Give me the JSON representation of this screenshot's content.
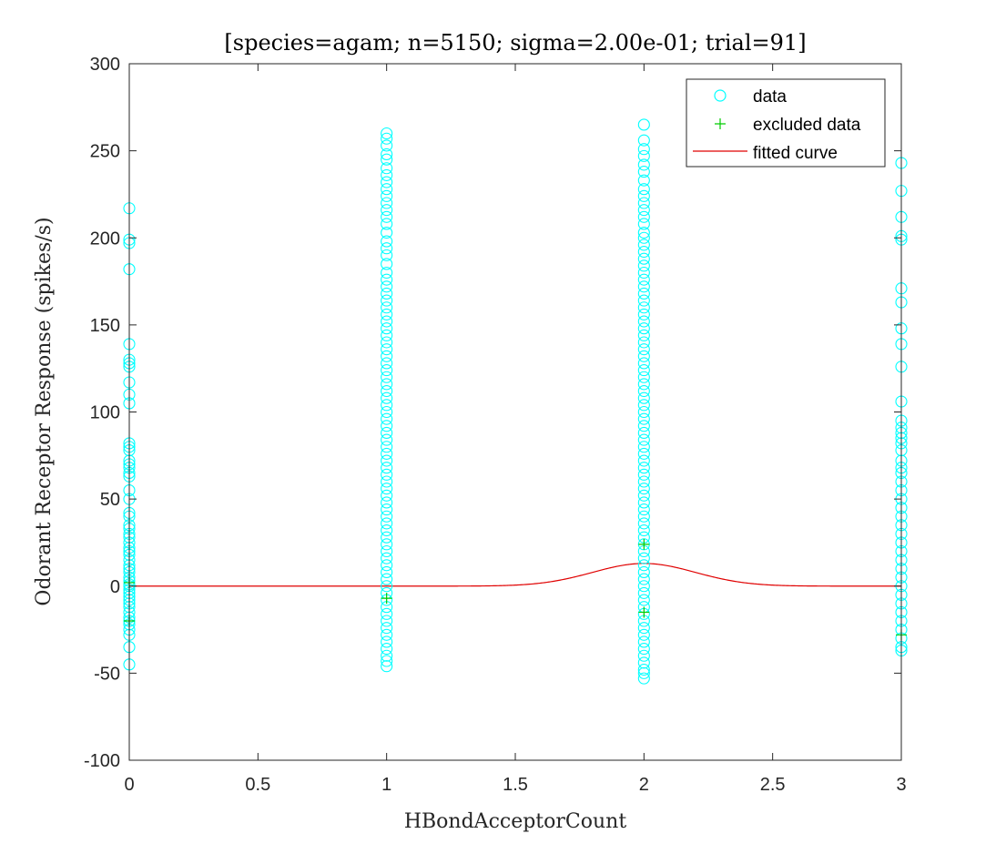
{
  "chart_data": {
    "type": "scatter",
    "title": "[species=agam; n=5150; sigma=2.00e-01; trial=91]",
    "xlabel": "HBondAcceptorCount",
    "ylabel": "Odorant Receptor Response (spikes/s)",
    "xlim": [
      0,
      3
    ],
    "ylim": [
      -100,
      300
    ],
    "xticks": [
      0,
      0.5,
      1,
      1.5,
      2,
      2.5,
      3
    ],
    "xtick_labels": [
      "0",
      "0.5",
      "1",
      "1.5",
      "2",
      "2.5",
      "3"
    ],
    "yticks": [
      -100,
      -50,
      0,
      50,
      100,
      150,
      200,
      250,
      300
    ],
    "ytick_labels": [
      "-100",
      "-50",
      "0",
      "50",
      "100",
      "150",
      "200",
      "250",
      "300"
    ],
    "grid": false,
    "legend_position": "top-right",
    "legend": [
      "data",
      "excluded data",
      "fitted curve"
    ],
    "colors": {
      "data": "#00ffff",
      "excluded": "#00cc00",
      "fit": "#e00000",
      "axes": "#262626"
    },
    "series": [
      {
        "name": "data",
        "marker": "circle",
        "groups": [
          {
            "x": 0,
            "y": [
              217,
              199,
              197,
              182,
              139,
              130,
              128,
              126,
              117,
              110,
              105,
              82,
              80,
              78,
              72,
              70,
              68,
              65,
              63,
              55,
              50,
              42,
              40,
              35,
              33,
              30,
              28,
              25,
              22,
              20,
              18,
              15,
              12,
              10,
              8,
              5,
              3,
              1,
              0,
              -2,
              -4,
              -6,
              -8,
              -10,
              -12,
              -15,
              -18,
              -20,
              -22,
              -25,
              -28,
              -35,
              -45
            ]
          },
          {
            "x": 1,
            "y": [
              260,
              257,
              253,
              248,
              245,
              240,
              236,
              232,
              228,
              224,
              220,
              216,
              212,
              208,
              203,
              198,
              194,
              190,
              185,
              180,
              176,
              172,
              168,
              164,
              160,
              156,
              152,
              148,
              144,
              140,
              136,
              132,
              128,
              124,
              120,
              116,
              112,
              108,
              104,
              100,
              96,
              92,
              88,
              84,
              80,
              76,
              72,
              68,
              64,
              60,
              56,
              52,
              48,
              44,
              40,
              36,
              32,
              28,
              24,
              20,
              16,
              12,
              8,
              4,
              0,
              -4,
              -8,
              -12,
              -16,
              -20,
              -24,
              -28,
              -32,
              -36,
              -40,
              -43,
              -46
            ]
          },
          {
            "x": 2,
            "y": [
              265,
              256,
              251,
              247,
              242,
              238,
              233,
              228,
              224,
              220,
              216,
              212,
              208,
              203,
              200,
              196,
              192,
              188,
              184,
              180,
              176,
              172,
              168,
              164,
              160,
              156,
              152,
              148,
              144,
              140,
              136,
              132,
              128,
              124,
              120,
              116,
              112,
              108,
              104,
              100,
              96,
              92,
              88,
              84,
              80,
              76,
              72,
              68,
              64,
              60,
              56,
              52,
              48,
              44,
              40,
              36,
              32,
              28,
              24,
              20,
              16,
              12,
              8,
              4,
              0,
              -4,
              -8,
              -12,
              -16,
              -20,
              -24,
              -28,
              -32,
              -36,
              -40,
              -44,
              -48,
              -50,
              -53
            ]
          },
          {
            "x": 3,
            "y": [
              243,
              227,
              212,
              201,
              199,
              171,
              163,
              148,
              139,
              126,
              106,
              95,
              91,
              88,
              85,
              82,
              78,
              72,
              68,
              65,
              60,
              55,
              50,
              45,
              40,
              35,
              30,
              25,
              20,
              15,
              10,
              5,
              0,
              -5,
              -10,
              -15,
              -20,
              -25,
              -30,
              -35,
              -37
            ]
          }
        ]
      },
      {
        "name": "excluded data",
        "marker": "plus",
        "points": [
          {
            "x": 0,
            "y": 2
          },
          {
            "x": 0,
            "y": -20
          },
          {
            "x": 1,
            "y": -7
          },
          {
            "x": 2,
            "y": 24
          },
          {
            "x": 2,
            "y": -15
          },
          {
            "x": 3,
            "y": -28
          }
        ]
      },
      {
        "name": "fitted curve",
        "type": "line",
        "model": "gaussian",
        "amplitude": 13,
        "center": 2,
        "sigma": 0.2,
        "baseline": 0
      }
    ]
  }
}
